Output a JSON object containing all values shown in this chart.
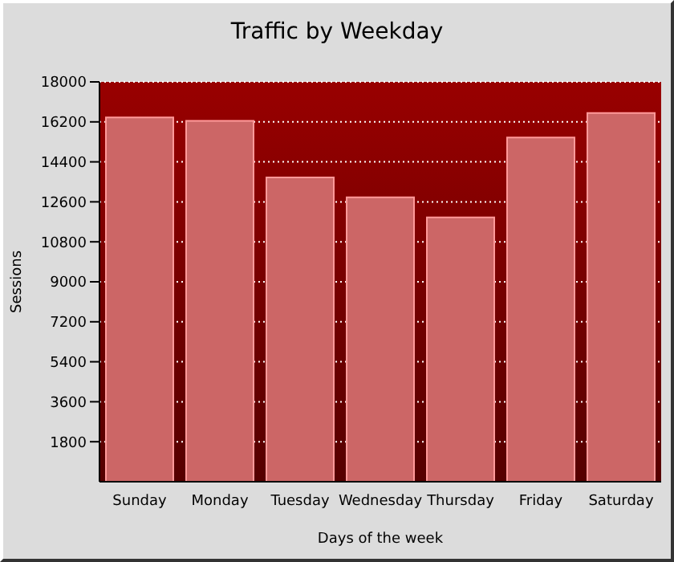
{
  "chart_data": {
    "type": "bar",
    "title": "Traffic by Weekday",
    "xlabel": "Days of the week",
    "ylabel": "Sessions",
    "categories": [
      "Sunday",
      "Monday",
      "Tuesday",
      "Wednesday",
      "Thursday",
      "Friday",
      "Saturday"
    ],
    "values": [
      16400,
      16250,
      13700,
      12800,
      11900,
      15500,
      16600
    ],
    "color": "#cc6666",
    "ylim": [
      0,
      18000
    ],
    "yticks": [
      1800,
      3600,
      5400,
      7200,
      9000,
      10800,
      12600,
      14400,
      16200,
      18000
    ],
    "grid": "y"
  }
}
